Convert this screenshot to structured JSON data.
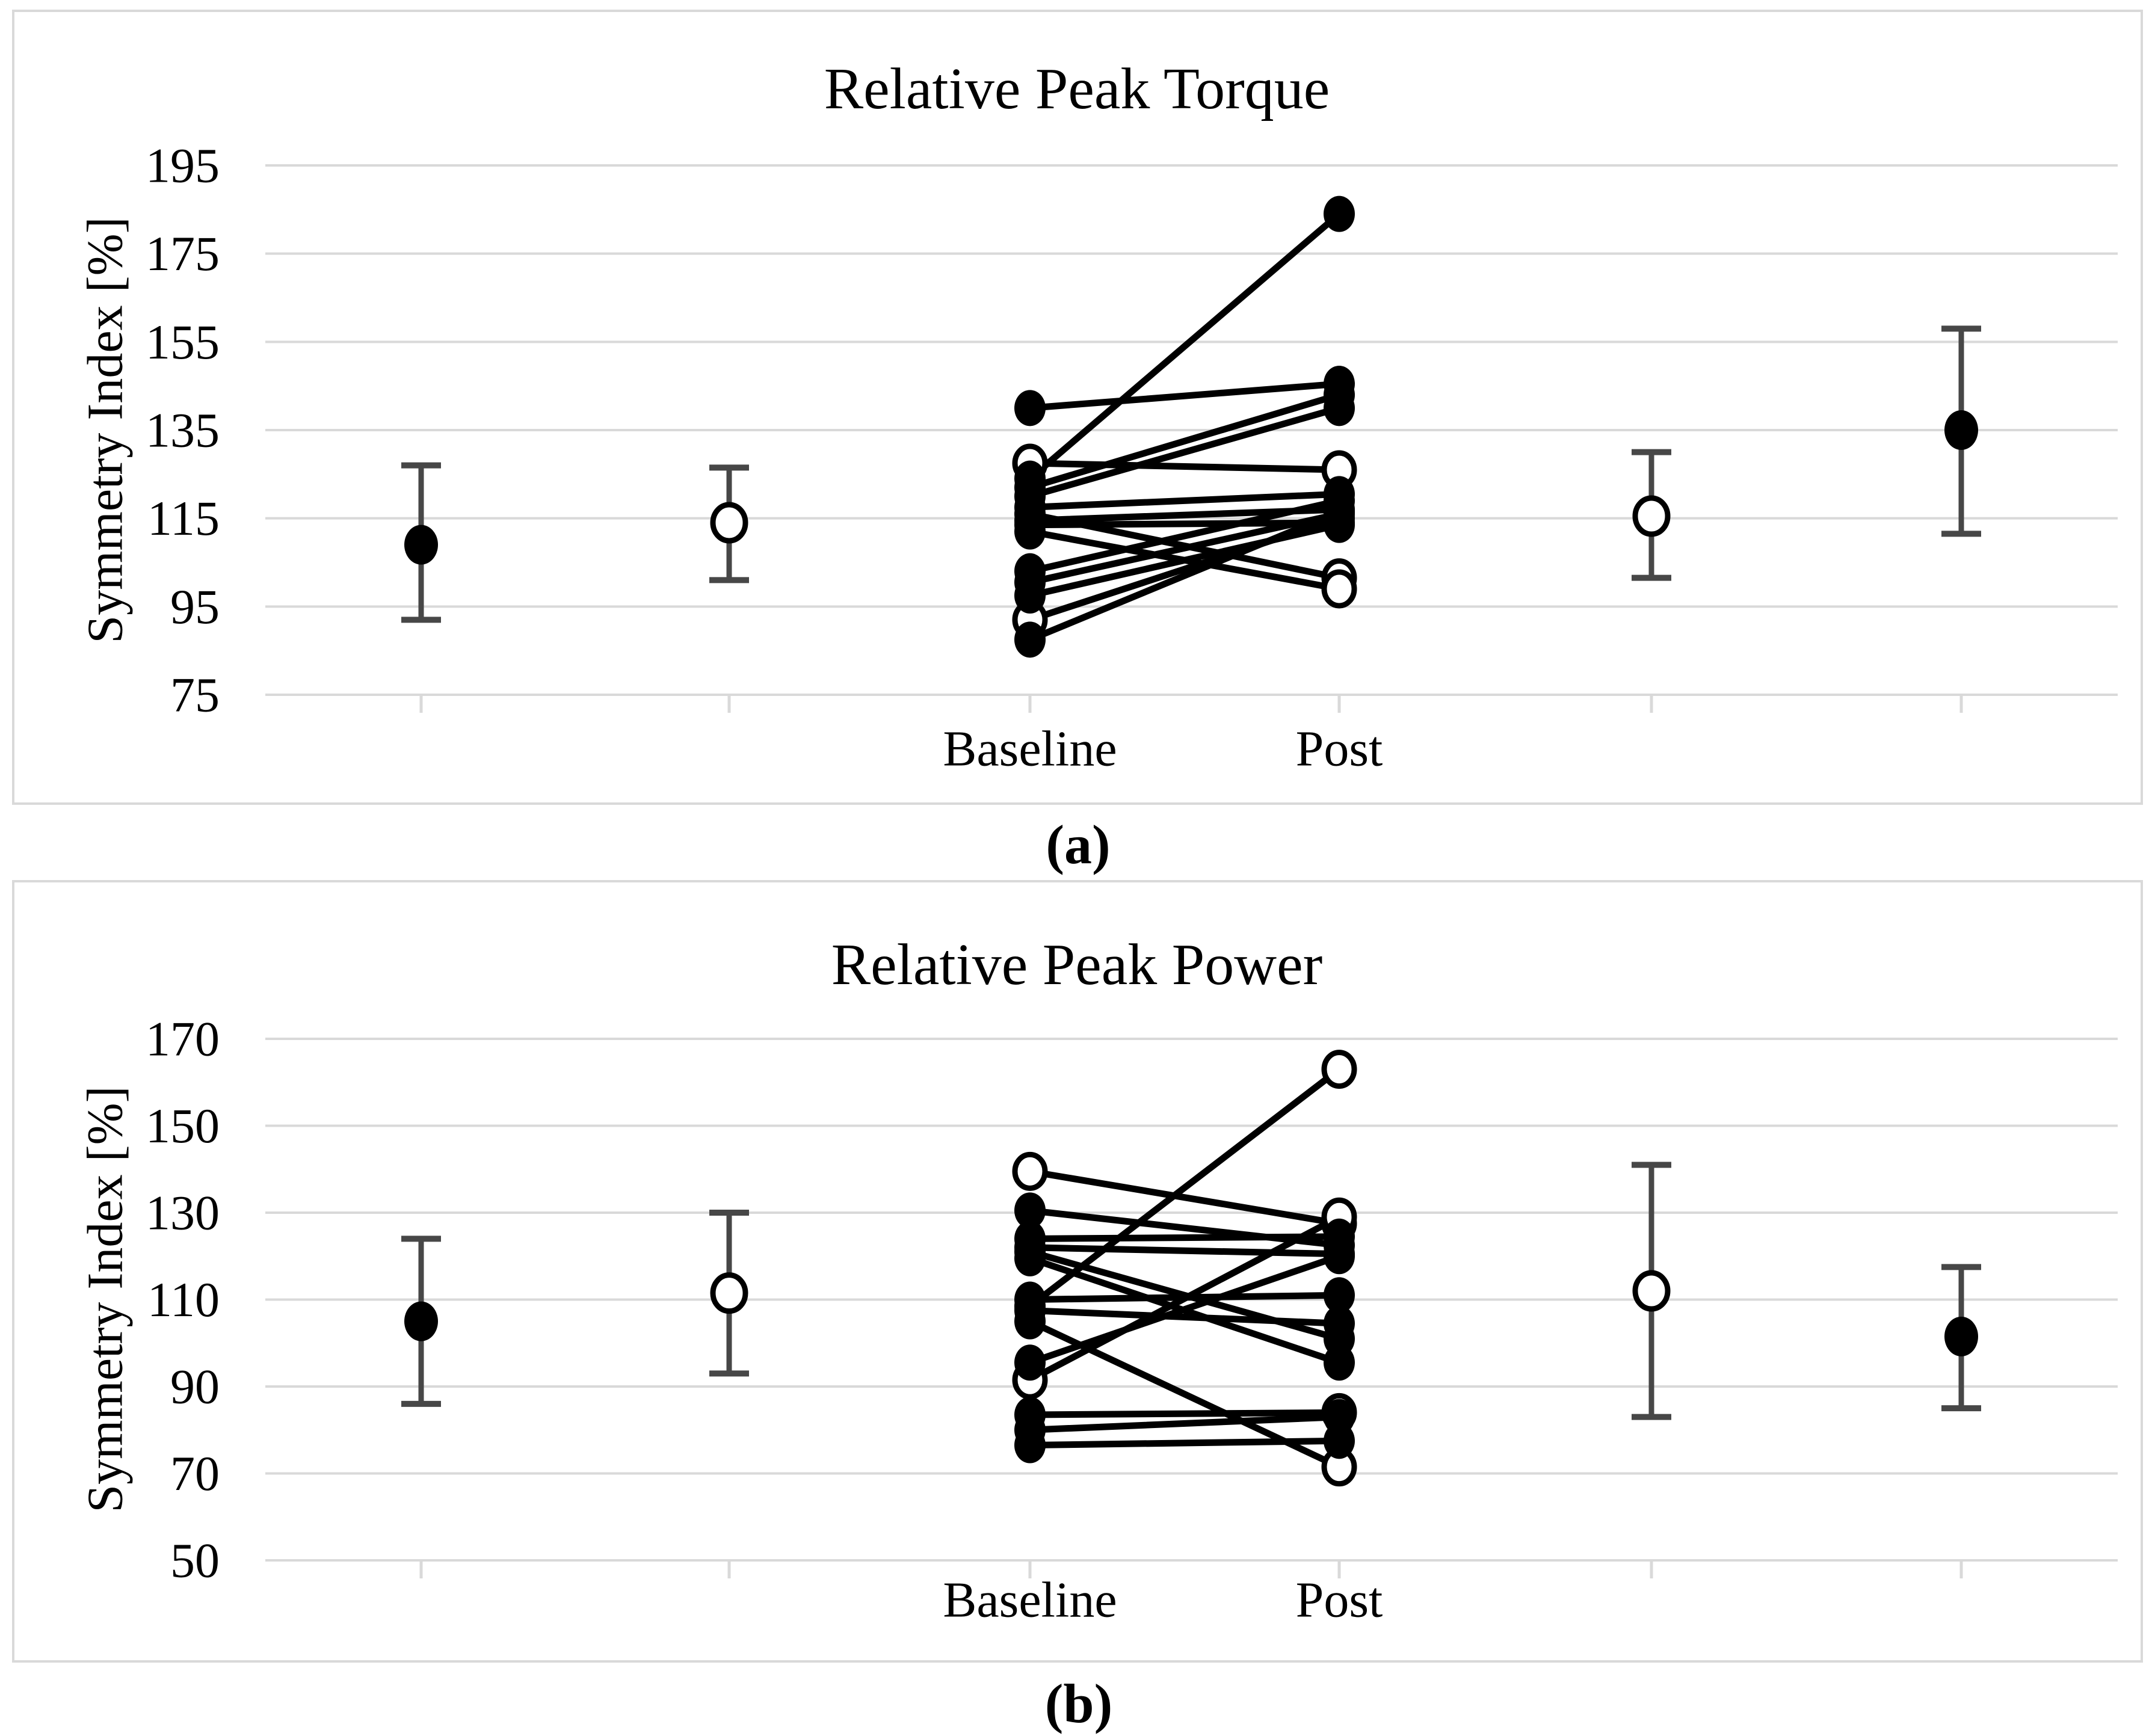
{
  "captions": {
    "a": "(a)",
    "b": "(b)"
  },
  "chart_data": [
    {
      "type": "scatter",
      "title": "Relative Peak Torque",
      "ylabel": "Symmetry Index [%]",
      "ylim": [
        75,
        195
      ],
      "yticks": [
        195,
        175,
        155,
        135,
        115,
        95,
        75
      ],
      "categories": [
        "Baseline",
        "Post"
      ],
      "grid": true,
      "legend": "none",
      "marker_styles": {
        "filled": "#000000",
        "open": "white-with-black-ring"
      },
      "means": [
        {
          "marker": "filled",
          "slot": 1,
          "mean": 109,
          "lower": 92,
          "upper": 127
        },
        {
          "marker": "open",
          "slot": 2,
          "mean": 114,
          "lower": 101,
          "upper": 126.5
        },
        {
          "marker": "open",
          "slot": 5,
          "mean": 115.5,
          "lower": 101.5,
          "upper": 130
        },
        {
          "marker": "filled",
          "slot": 6,
          "mean": 135,
          "lower": 111.5,
          "upper": 158
        }
      ],
      "pairs": [
        {
          "baseline": 140,
          "post": 145.5,
          "baseline_marker": "filled",
          "post_marker": "filled"
        },
        {
          "baseline": 127.5,
          "post": 126,
          "baseline_marker": "open",
          "post_marker": "open"
        },
        {
          "baseline": 124,
          "post": 184,
          "baseline_marker": "filled",
          "post_marker": "filled"
        },
        {
          "baseline": 122,
          "post": 143,
          "baseline_marker": "filled",
          "post_marker": "filled"
        },
        {
          "baseline": 120,
          "post": 140,
          "baseline_marker": "filled",
          "post_marker": "filled"
        },
        {
          "baseline": 117.5,
          "post": 120.5,
          "baseline_marker": "filled",
          "post_marker": "filled"
        },
        {
          "baseline": 116,
          "post": 101.5,
          "baseline_marker": "filled",
          "post_marker": "open"
        },
        {
          "baseline": 114.5,
          "post": 117,
          "baseline_marker": "filled",
          "post_marker": "filled"
        },
        {
          "baseline": 113.5,
          "post": 114,
          "baseline_marker": "filled",
          "post_marker": "filled"
        },
        {
          "baseline": 112,
          "post": 99,
          "baseline_marker": "filled",
          "post_marker": "open"
        },
        {
          "baseline": 103,
          "post": 119,
          "baseline_marker": "filled",
          "post_marker": "filled"
        },
        {
          "baseline": 100.5,
          "post": 116,
          "baseline_marker": "filled",
          "post_marker": "filled"
        },
        {
          "baseline": 92,
          "post": 115,
          "baseline_marker": "open",
          "post_marker": "filled"
        },
        {
          "baseline": 97.5,
          "post": 113.5,
          "baseline_marker": "filled",
          "post_marker": "filled"
        },
        {
          "baseline": 87.5,
          "post": 116.5,
          "baseline_marker": "filled",
          "post_marker": "filled"
        }
      ]
    },
    {
      "type": "scatter",
      "title": "Relative Peak Power",
      "ylabel": "Symmetry Index [%]",
      "ylim": [
        50,
        170
      ],
      "yticks": [
        170,
        150,
        130,
        110,
        90,
        70,
        50
      ],
      "categories": [
        "Baseline",
        "Post"
      ],
      "grid": true,
      "legend": "none",
      "marker_styles": {
        "filled": "#000000",
        "open": "white-with-black-ring"
      },
      "means": [
        {
          "marker": "filled",
          "slot": 1,
          "mean": 105,
          "lower": 86,
          "upper": 124
        },
        {
          "marker": "open",
          "slot": 2,
          "mean": 111.5,
          "lower": 93,
          "upper": 130
        },
        {
          "marker": "open",
          "slot": 5,
          "mean": 112,
          "lower": 83,
          "upper": 141
        },
        {
          "marker": "filled",
          "slot": 6,
          "mean": 101.5,
          "lower": 85,
          "upper": 117.5
        }
      ],
      "pairs": [
        {
          "baseline": 139.5,
          "post": 127.5,
          "baseline_marker": "open",
          "post_marker": "open"
        },
        {
          "baseline": 130.5,
          "post": 122.5,
          "baseline_marker": "filled",
          "post_marker": "filled"
        },
        {
          "baseline": 124,
          "post": 124.5,
          "baseline_marker": "filled",
          "post_marker": "filled"
        },
        {
          "baseline": 122,
          "post": 120.5,
          "baseline_marker": "filled",
          "post_marker": "filled"
        },
        {
          "baseline": 121,
          "post": 101,
          "baseline_marker": "filled",
          "post_marker": "filled"
        },
        {
          "baseline": 119.5,
          "post": 95.5,
          "baseline_marker": "filled",
          "post_marker": "filled"
        },
        {
          "baseline": 108.5,
          "post": 163,
          "baseline_marker": "filled",
          "post_marker": "open"
        },
        {
          "baseline": 110,
          "post": 111,
          "baseline_marker": "filled",
          "post_marker": "filled"
        },
        {
          "baseline": 107.5,
          "post": 104.5,
          "baseline_marker": "filled",
          "post_marker": "filled"
        },
        {
          "baseline": 105,
          "post": 71.5,
          "baseline_marker": "filled",
          "post_marker": "open"
        },
        {
          "baseline": 91.5,
          "post": 129,
          "baseline_marker": "open",
          "post_marker": "open"
        },
        {
          "baseline": 95.5,
          "post": 120,
          "baseline_marker": "filled",
          "post_marker": "filled"
        },
        {
          "baseline": 83.5,
          "post": 84,
          "baseline_marker": "filled",
          "post_marker": "open"
        },
        {
          "baseline": 80,
          "post": 83,
          "baseline_marker": "filled",
          "post_marker": "filled"
        },
        {
          "baseline": 76.5,
          "post": 77.5,
          "baseline_marker": "filled",
          "post_marker": "filled"
        }
      ]
    }
  ]
}
